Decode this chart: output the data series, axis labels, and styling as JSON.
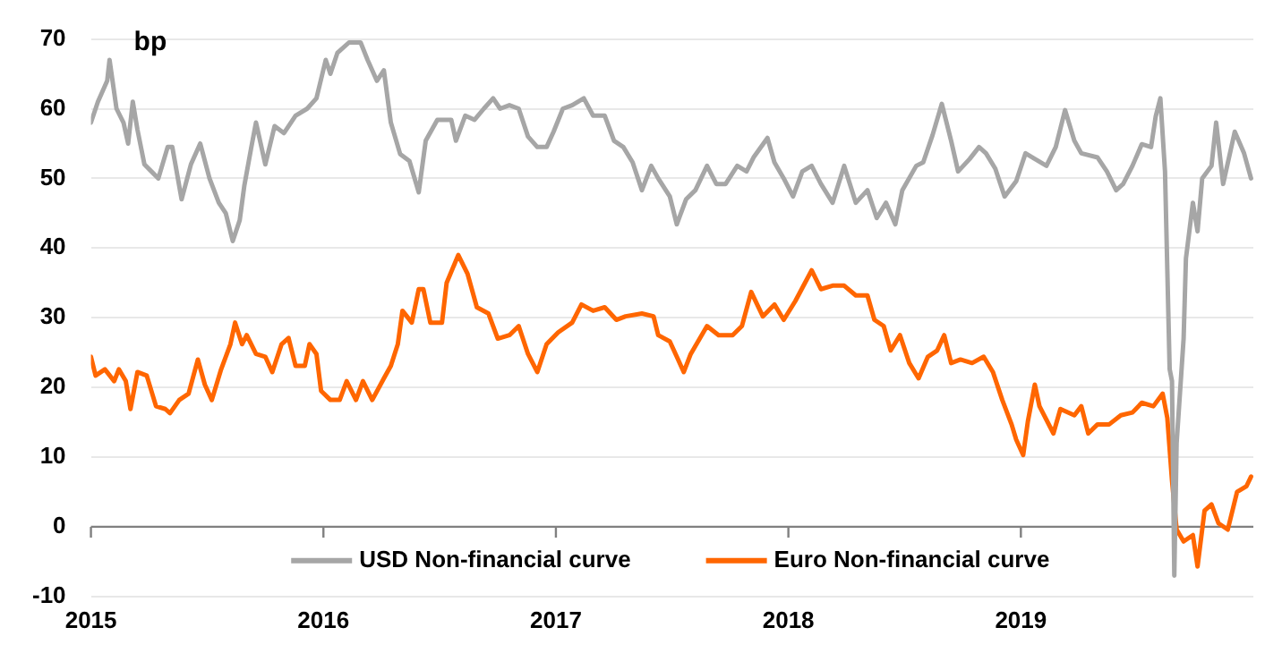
{
  "chart_data": {
    "type": "line",
    "ylabel": "bp",
    "xlim": [
      2015,
      2020
    ],
    "xticks": [
      2015,
      2016,
      2017,
      2018,
      2019
    ],
    "ylim": [
      -10,
      70
    ],
    "yticks": [
      -10,
      0,
      10,
      20,
      30,
      40,
      50,
      60,
      70
    ],
    "grid": "y",
    "legend": "bottom",
    "marker": "none",
    "line_style": "solid",
    "ref_lines": [
      {
        "axis": "y",
        "value": 0,
        "color": "#808080"
      }
    ],
    "series": [
      {
        "name": "USD Non-financial curve",
        "color": "#a6a6a6",
        "x": [
          2015.0,
          2015.03,
          2015.07,
          2015.08,
          2015.11,
          2015.14,
          2015.16,
          2015.18,
          2015.2,
          2015.23,
          2015.26,
          2015.29,
          2015.33,
          2015.35,
          2015.39,
          2015.43,
          2015.47,
          2015.51,
          2015.55,
          2015.58,
          2015.61,
          2015.64,
          2015.66,
          2015.69,
          2015.71,
          2015.75,
          2015.79,
          2015.83,
          2015.88,
          2015.93,
          2015.97,
          2016.01,
          2016.03,
          2016.06,
          2016.11,
          2016.16,
          2016.19,
          2016.23,
          2016.26,
          2016.29,
          2016.33,
          2016.37,
          2016.41,
          2016.44,
          2016.49,
          2016.55,
          2016.57,
          2016.61,
          2016.65,
          2016.69,
          2016.73,
          2016.76,
          2016.8,
          2016.84,
          2016.88,
          2016.92,
          2016.96,
          2016.99,
          2017.03,
          2017.07,
          2017.12,
          2017.16,
          2017.21,
          2017.25,
          2017.29,
          2017.33,
          2017.37,
          2017.41,
          2017.44,
          2017.49,
          2017.52,
          2017.56,
          2017.6,
          2017.65,
          2017.69,
          2017.73,
          2017.78,
          2017.82,
          2017.85,
          2017.91,
          2017.94,
          2017.98,
          2018.02,
          2018.06,
          2018.1,
          2018.14,
          2018.19,
          2018.24,
          2018.29,
          2018.34,
          2018.38,
          2018.42,
          2018.46,
          2018.49,
          2018.55,
          2018.58,
          2018.62,
          2018.66,
          2018.7,
          2018.73,
          2018.78,
          2018.82,
          2018.85,
          2018.89,
          2018.93,
          2018.98,
          2019.02,
          2019.06,
          2019.11,
          2019.15,
          2019.19,
          2019.23,
          2019.26,
          2019.33,
          2019.37,
          2019.41,
          2019.44,
          2019.48,
          2019.52,
          2019.56,
          2019.58,
          2019.6,
          2019.62,
          2019.64,
          2019.65,
          2019.66,
          2019.67,
          2019.7,
          2019.71,
          2019.74,
          2019.76,
          2019.78,
          2019.82,
          2019.84,
          2019.87,
          2019.92,
          2019.96,
          2019.99
        ],
        "values": [
          58,
          61,
          64,
          67,
          60,
          58,
          55,
          61,
          57,
          52,
          51,
          50,
          54.5,
          54.5,
          47,
          52,
          55,
          50,
          46.5,
          45,
          41,
          44,
          49,
          54.5,
          58,
          52,
          57.5,
          56.5,
          59,
          60,
          61.5,
          67,
          65,
          68,
          69.5,
          69.5,
          67,
          64,
          65.5,
          58,
          53.5,
          52.5,
          48,
          55.4,
          58.4,
          58.4,
          55.4,
          59,
          58.4,
          60,
          61.5,
          60,
          60.5,
          60,
          56,
          54.5,
          54.5,
          56.7,
          60,
          60.5,
          61.5,
          59,
          59,
          55.4,
          54.5,
          52.3,
          48.3,
          51.8,
          50,
          47.4,
          43.4,
          47,
          48.3,
          51.8,
          49.2,
          49.2,
          51.8,
          51,
          53,
          55.8,
          52.3,
          50,
          47.4,
          51,
          51.8,
          49.2,
          46.5,
          51.8,
          46.5,
          48.3,
          44.3,
          46.5,
          43.4,
          48.3,
          51.8,
          52.3,
          56.2,
          60.7,
          55.4,
          51,
          52.8,
          54.5,
          53.6,
          51.4,
          47.4,
          49.6,
          53.6,
          52.8,
          51.8,
          54.5,
          59.8,
          55.4,
          53.6,
          53,
          51,
          48.3,
          49.2,
          51.8,
          54.9,
          54.5,
          58.9,
          61.5,
          51,
          22.6,
          20.9,
          -7,
          12,
          27,
          38.5,
          46.5,
          42.4,
          50,
          51.8,
          58,
          49.2,
          56.7,
          53.6,
          50
        ]
      },
      {
        "name": "Euro Non-financial curve",
        "color": "#ff6600",
        "x": [
          2015.0,
          2015.02,
          2015.06,
          2015.1,
          2015.12,
          2015.15,
          2015.17,
          2015.2,
          2015.24,
          2015.28,
          2015.32,
          2015.34,
          2015.38,
          2015.42,
          2015.46,
          2015.49,
          2015.52,
          2015.56,
          2015.6,
          2015.62,
          2015.65,
          2015.67,
          2015.71,
          2015.75,
          2015.78,
          2015.82,
          2015.85,
          2015.88,
          2015.92,
          2015.94,
          2015.97,
          2015.99,
          2016.03,
          2016.07,
          2016.1,
          2016.14,
          2016.17,
          2016.21,
          2016.26,
          2016.29,
          2016.32,
          2016.34,
          2016.38,
          2016.41,
          2016.43,
          2016.46,
          2016.51,
          2016.53,
          2016.58,
          2016.62,
          2016.66,
          2016.71,
          2016.75,
          2016.8,
          2016.84,
          2016.88,
          2016.92,
          2016.96,
          2017.01,
          2017.07,
          2017.11,
          2017.16,
          2017.21,
          2017.26,
          2017.3,
          2017.37,
          2017.42,
          2017.44,
          2017.49,
          2017.52,
          2017.55,
          2017.58,
          2017.65,
          2017.7,
          2017.76,
          2017.8,
          2017.84,
          2017.89,
          2017.94,
          2017.98,
          2018.03,
          2018.1,
          2018.14,
          2018.19,
          2018.24,
          2018.29,
          2018.34,
          2018.37,
          2018.41,
          2018.44,
          2018.48,
          2018.52,
          2018.56,
          2018.6,
          2018.64,
          2018.67,
          2018.7,
          2018.74,
          2018.79,
          2018.84,
          2018.88,
          2018.92,
          2018.96,
          2018.98,
          2019.01,
          2019.03,
          2019.06,
          2019.08,
          2019.14,
          2019.17,
          2019.23,
          2019.26,
          2019.29,
          2019.33,
          2019.38,
          2019.43,
          2019.48,
          2019.52,
          2019.57,
          2019.61,
          2019.63,
          2019.65,
          2019.67,
          2019.7,
          2019.74,
          2019.76,
          2019.79,
          2019.82,
          2019.85,
          2019.89,
          2019.93,
          2019.97,
          2019.99
        ],
        "values": [
          24.4,
          21.7,
          22.6,
          20.9,
          22.6,
          20.9,
          16.9,
          22.2,
          21.7,
          17.3,
          16.9,
          16.3,
          18.2,
          19.1,
          24,
          20.4,
          18.2,
          22.6,
          26.2,
          29.3,
          26.2,
          27.5,
          24.8,
          24.4,
          22.2,
          26.2,
          27.1,
          23.1,
          23.1,
          26.2,
          24.8,
          19.5,
          18.2,
          18.2,
          20.9,
          18.2,
          20.9,
          18.2,
          21.3,
          23.1,
          26.2,
          31,
          29.3,
          34.1,
          34.1,
          29.3,
          29.3,
          35,
          39,
          36.3,
          31.5,
          30.6,
          27,
          27.5,
          28.8,
          24.8,
          22.2,
          26.2,
          27.9,
          29.3,
          31.9,
          31,
          31.5,
          29.7,
          30.2,
          30.6,
          30.2,
          27.5,
          26.6,
          24.4,
          22.2,
          24.8,
          28.8,
          27.5,
          27.5,
          28.8,
          33.7,
          30.2,
          31.9,
          29.7,
          32.4,
          36.8,
          34.1,
          34.6,
          34.6,
          33.2,
          33.2,
          29.7,
          28.8,
          25.3,
          27.5,
          23.5,
          21.3,
          24.4,
          25.3,
          27.5,
          23.5,
          24,
          23.5,
          24.4,
          22.2,
          18.2,
          14.7,
          12.5,
          10.3,
          15.1,
          20.4,
          17.3,
          13.4,
          16.9,
          16,
          17.3,
          13.4,
          14.7,
          14.7,
          16,
          16.4,
          17.8,
          17.3,
          19.1,
          15.6,
          6.7,
          -0.4,
          -2.1,
          -1.2,
          -5.7,
          2.3,
          3.2,
          0.5,
          -0.4,
          5,
          5.8,
          7.2
        ]
      }
    ]
  }
}
